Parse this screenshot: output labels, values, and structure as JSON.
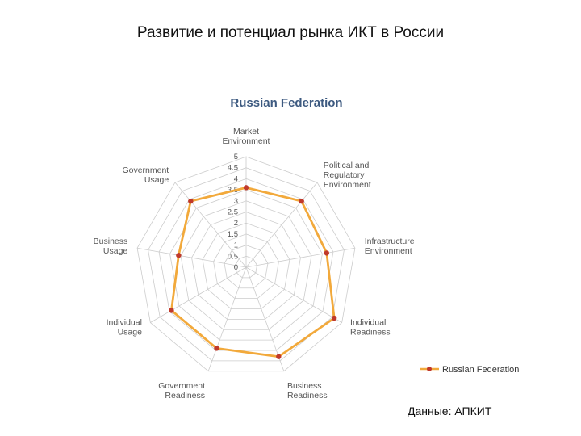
{
  "slide": {
    "title": "Развитие и потенциал рынка ИКТ в России",
    "source": "Данные: АПКИТ"
  },
  "colors": {
    "series_line": "#F2A93B",
    "series_marker": "#C0392B",
    "grid": "#CCCCCC",
    "title_blue": "#3D5A80",
    "label": "#555555"
  },
  "chart_data": {
    "type": "radar",
    "title": "Russian Federation",
    "categories": [
      "Market Environment",
      "Political and Regulatory Environment",
      "Infrastructure Environment",
      "Individual Readiness",
      "Business Readiness",
      "Government Readiness",
      "Individual Usage",
      "Business Usage",
      "Government Usage"
    ],
    "category_lines": [
      [
        "Market",
        "Environment"
      ],
      [
        "Political and",
        "Regulatory",
        "Environment"
      ],
      [
        "Infrastructure",
        "Environment"
      ],
      [
        "Individual",
        "Readiness"
      ],
      [
        "Business",
        "Readiness"
      ],
      [
        "Government",
        "Readiness"
      ],
      [
        "Individual",
        "Usage"
      ],
      [
        "Business",
        "Usage"
      ],
      [
        "Government",
        "Usage"
      ]
    ],
    "ticks": [
      "0",
      "0.5",
      "1",
      "1.5",
      "2",
      "2.5",
      "3",
      "3.5",
      "4",
      "4.5",
      "5"
    ],
    "range": [
      0,
      5
    ],
    "series": [
      {
        "name": "Russian Federation",
        "values": [
          3.6,
          3.9,
          3.7,
          4.6,
          4.3,
          3.9,
          3.9,
          3.1,
          3.9
        ]
      }
    ],
    "legend": "bottom-right",
    "grid": true
  }
}
